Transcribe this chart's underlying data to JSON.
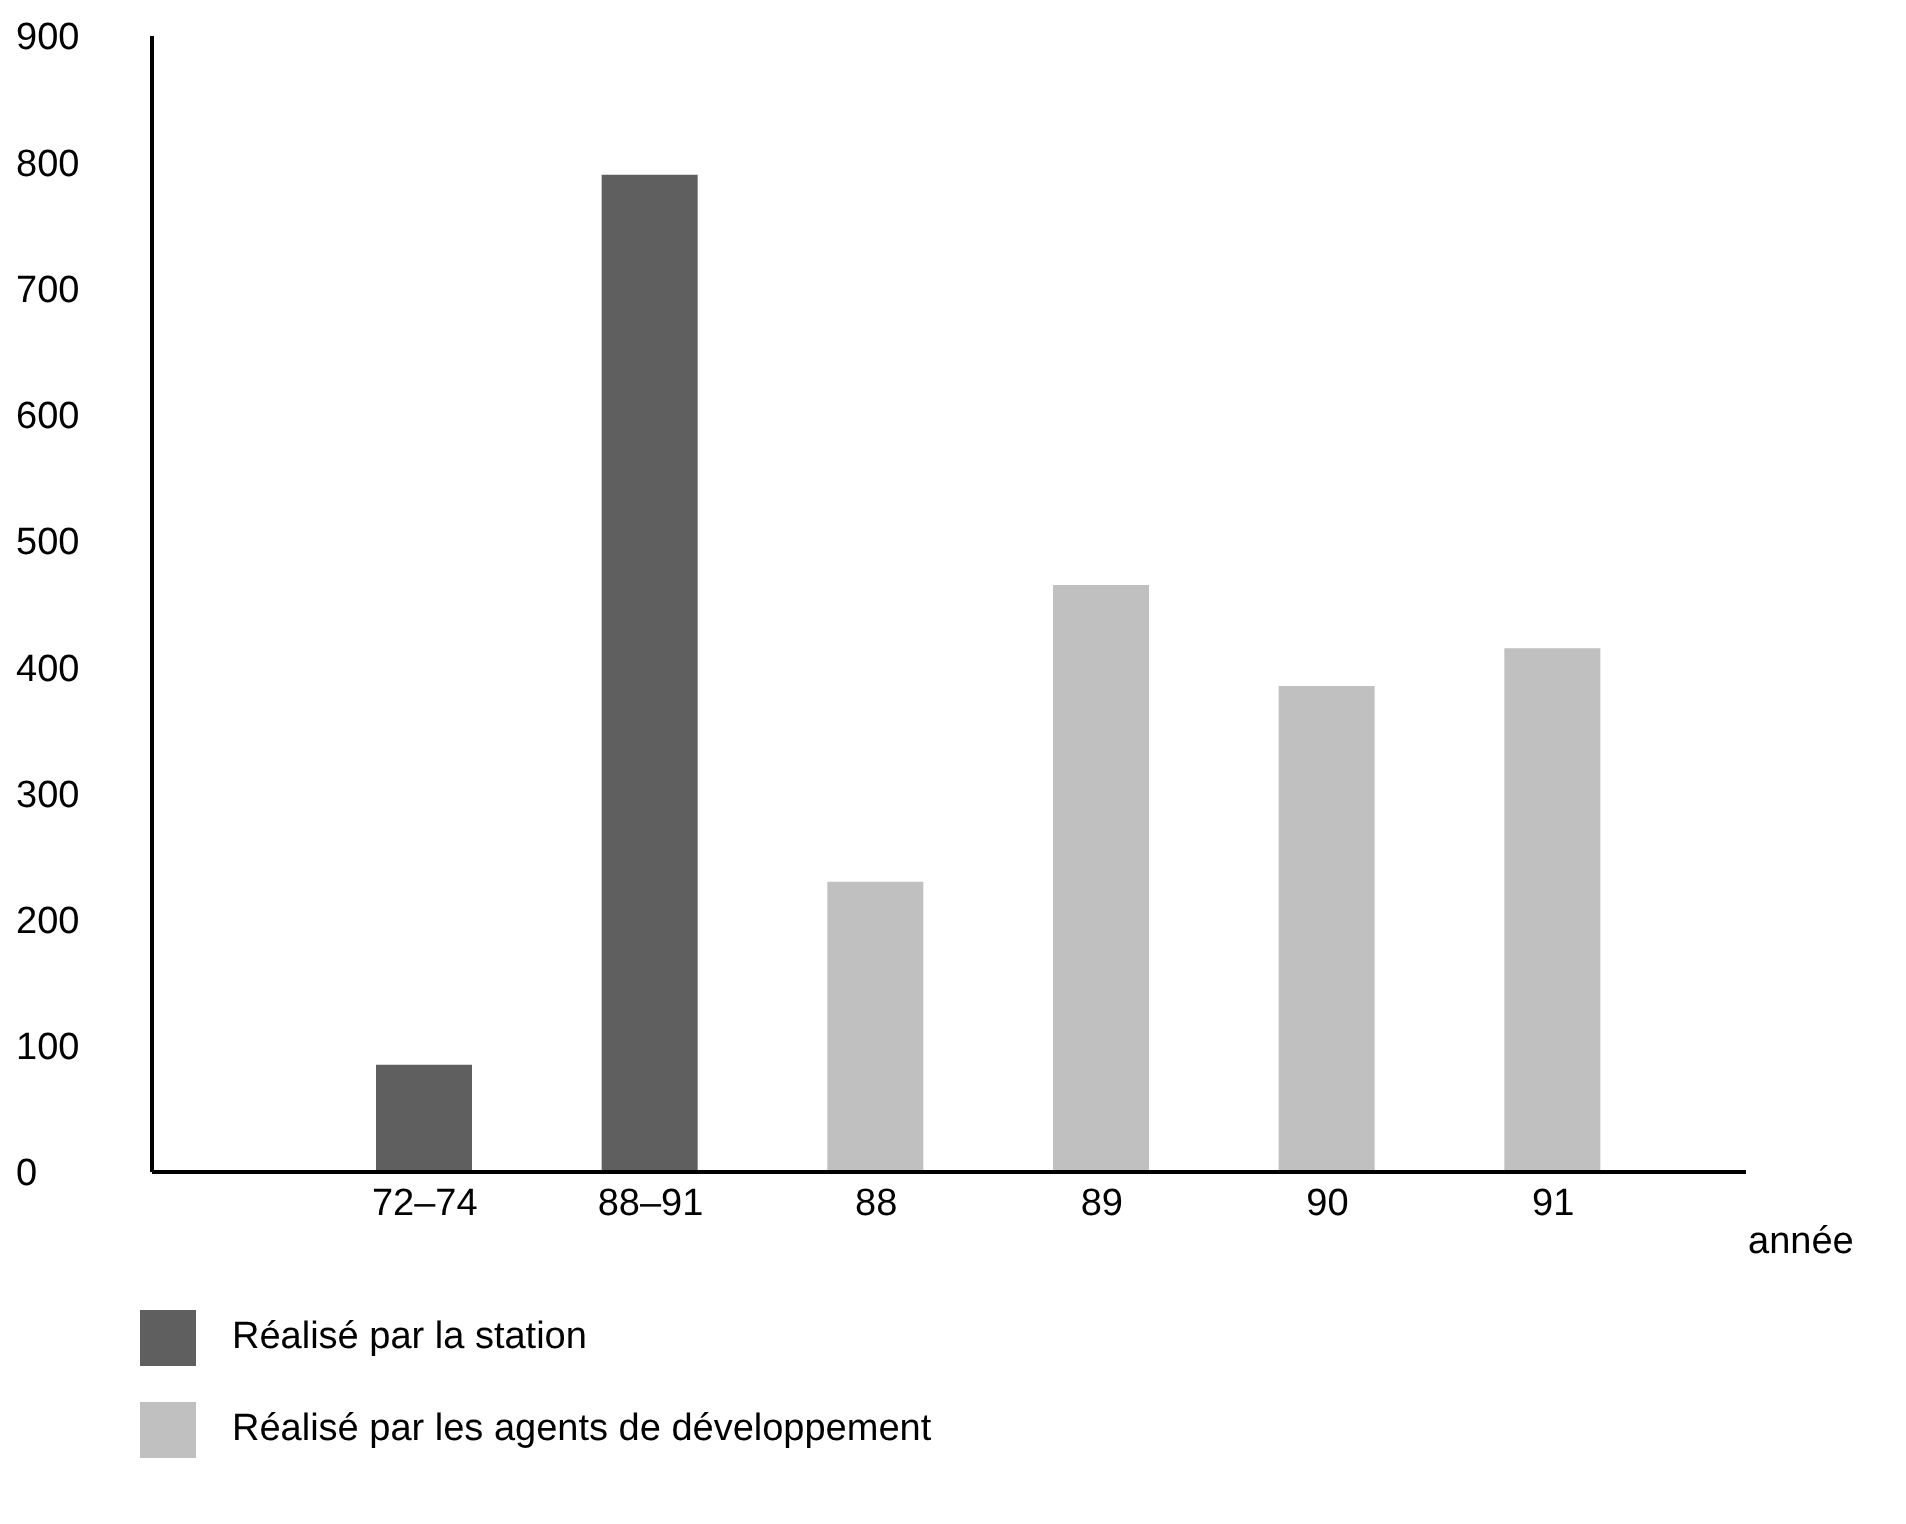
{
  "chart_data": {
    "type": "bar",
    "xlabel": "année",
    "categories": [
      "72–74",
      "88–91",
      "88",
      "89",
      "90",
      "91"
    ],
    "series": [
      {
        "name": "Réalisé par la station",
        "color": "#5f5f5f",
        "values": [
          85,
          790,
          null,
          null,
          null,
          null
        ]
      },
      {
        "name": "Réalisé par les agents de développement",
        "color": "#c0c0c0",
        "values": [
          null,
          null,
          230,
          465,
          385,
          415
        ]
      }
    ],
    "ylim": [
      0,
      900
    ],
    "yticks": [
      0,
      100,
      200,
      300,
      400,
      500,
      600,
      700,
      800,
      900
    ],
    "grid": false,
    "legend": "bottom left"
  }
}
